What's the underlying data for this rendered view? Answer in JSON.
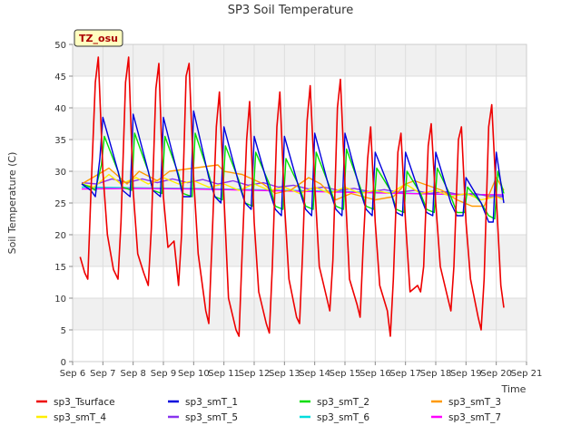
{
  "chart_data": {
    "type": "line",
    "title": "SP3 Soil Temperature",
    "xlabel": "Time",
    "ylabel": "Soil Temperature (C)",
    "badge": "TZ_osu",
    "xlim": [
      6,
      21
    ],
    "ylim": [
      0,
      50
    ],
    "x_ticks": [
      6,
      7,
      8,
      9,
      10,
      11,
      12,
      13,
      14,
      15,
      16,
      17,
      18,
      19,
      20,
      21
    ],
    "x_tick_labels": [
      "Sep 6",
      "Sep 7",
      "Sep 8",
      "Sep 9",
      "Sep 10",
      "Sep 11",
      "Sep 12",
      "Sep 13",
      "Sep 14",
      "Sep 15",
      "Sep 16",
      "Sep 17",
      "Sep 18",
      "Sep 19",
      "Sep 20",
      "Sep 21"
    ],
    "y_ticks": [
      0,
      5,
      10,
      15,
      20,
      25,
      30,
      35,
      40,
      45,
      50
    ],
    "y_tick_labels": [
      "0",
      "5",
      "10",
      "15",
      "20",
      "25",
      "30",
      "35",
      "40",
      "45",
      "50"
    ],
    "series": [
      {
        "name": "sp3_Tsurface",
        "color": "#ee0000",
        "x": [
          6.25,
          6.4,
          6.5,
          6.6,
          6.75,
          6.85,
          7.0,
          7.15,
          7.35,
          7.5,
          7.6,
          7.75,
          7.85,
          8.0,
          8.15,
          8.35,
          8.5,
          8.6,
          8.75,
          8.85,
          9.0,
          9.15,
          9.35,
          9.5,
          9.6,
          9.75,
          9.85,
          10.0,
          10.15,
          10.4,
          10.5,
          10.6,
          10.75,
          10.85,
          11.0,
          11.15,
          11.4,
          11.5,
          11.6,
          11.75,
          11.85,
          12.0,
          12.15,
          12.4,
          12.5,
          12.6,
          12.75,
          12.85,
          13.0,
          13.15,
          13.4,
          13.5,
          13.6,
          13.75,
          13.85,
          14.0,
          14.15,
          14.4,
          14.5,
          14.6,
          14.75,
          14.85,
          15.0,
          15.15,
          15.4,
          15.5,
          15.6,
          15.75,
          15.85,
          16.0,
          16.15,
          16.4,
          16.5,
          16.6,
          16.75,
          16.85,
          17.0,
          17.15,
          17.4,
          17.5,
          17.6,
          17.75,
          17.85,
          18.0,
          18.15,
          18.4,
          18.5,
          18.6,
          18.75,
          18.85,
          19.0,
          19.15,
          19.4,
          19.5,
          19.6,
          19.75,
          19.85,
          20.0,
          20.15,
          20.25
        ],
        "y": [
          16.5,
          14,
          13,
          26,
          44,
          48,
          30,
          20,
          14.5,
          13,
          22,
          44,
          48,
          27,
          17,
          14,
          12,
          21,
          43,
          47,
          26,
          18,
          19,
          12,
          20,
          45,
          47,
          29,
          17,
          8,
          6,
          18,
          37,
          42.5,
          26,
          10,
          5,
          4,
          17,
          35,
          41,
          22,
          11,
          6,
          4.5,
          15,
          37,
          42.5,
          25,
          13,
          7,
          6,
          17,
          38,
          43.5,
          28,
          15,
          10,
          8,
          16,
          40,
          44.5,
          28,
          13,
          9,
          7,
          18,
          32,
          37,
          22,
          12,
          8,
          4,
          13,
          33,
          36,
          22,
          11,
          12,
          11,
          15,
          34,
          37.5,
          25,
          15,
          10,
          8,
          15,
          35,
          37,
          22,
          13,
          7,
          5,
          13,
          37,
          40.5,
          26,
          12,
          8.5
        ]
      },
      {
        "name": "sp3_smT_1",
        "color": "#0000dd",
        "x": [
          6.3,
          6.6,
          6.75,
          6.9,
          7.0,
          7.5,
          7.65,
          7.9,
          8.0,
          8.5,
          8.65,
          8.9,
          9.0,
          9.5,
          9.65,
          9.9,
          10.0,
          10.5,
          10.7,
          10.9,
          11.0,
          11.5,
          11.7,
          11.9,
          12.0,
          12.5,
          12.7,
          12.9,
          13.0,
          13.5,
          13.7,
          13.9,
          14.0,
          14.5,
          14.7,
          14.9,
          15.0,
          15.5,
          15.7,
          15.9,
          16.0,
          16.5,
          16.7,
          16.9,
          17.0,
          17.5,
          17.7,
          17.9,
          18.0,
          18.5,
          18.7,
          18.9,
          19.0,
          19.5,
          19.75,
          19.9,
          20.0,
          20.25
        ],
        "y": [
          28,
          27,
          26,
          32,
          38.5,
          30,
          27,
          26,
          39,
          30,
          27,
          26,
          38.5,
          29,
          26,
          26,
          39.5,
          29,
          26,
          25,
          37,
          28,
          25,
          24,
          35.5,
          27,
          24,
          23,
          35.5,
          27,
          24,
          23,
          36,
          27,
          24,
          23,
          36,
          27,
          24,
          23,
          33,
          27,
          23.5,
          23,
          33,
          26,
          23.5,
          23,
          33,
          25,
          23,
          23,
          29,
          25,
          22,
          22,
          33,
          25
        ]
      },
      {
        "name": "sp3_smT_2",
        "color": "#00dd00",
        "x": [
          6.3,
          6.6,
          6.75,
          6.95,
          7.05,
          7.5,
          7.65,
          7.95,
          8.05,
          8.5,
          8.65,
          8.95,
          9.05,
          9.5,
          9.65,
          9.95,
          10.05,
          10.5,
          10.7,
          10.95,
          11.05,
          11.5,
          11.7,
          11.95,
          12.05,
          12.5,
          12.7,
          12.95,
          13.05,
          13.5,
          13.7,
          13.95,
          14.05,
          14.5,
          14.7,
          14.95,
          15.05,
          15.5,
          15.7,
          15.95,
          16.05,
          16.5,
          16.7,
          16.95,
          17.05,
          17.5,
          17.7,
          17.95,
          18.05,
          18.5,
          18.7,
          18.95,
          19.05,
          19.5,
          19.75,
          19.95,
          20.05,
          20.25
        ],
        "y": [
          28,
          27.5,
          27,
          31,
          35.5,
          30,
          27.5,
          27,
          36,
          30,
          27,
          26.5,
          35.5,
          29.5,
          26.5,
          26,
          36,
          29.5,
          26,
          25.5,
          34,
          28.5,
          25,
          24.5,
          33,
          28,
          24.5,
          24,
          32,
          27.5,
          24.5,
          24,
          33,
          27.5,
          24.5,
          24,
          33.5,
          27.5,
          24.5,
          24,
          30.5,
          27,
          24,
          23.5,
          30,
          26.5,
          24,
          23.5,
          30.5,
          26,
          23.5,
          23.5,
          27.5,
          25,
          23,
          22.5,
          30,
          26.5
        ]
      },
      {
        "name": "sp3_smT_3",
        "color": "#ff9900",
        "x": [
          6.3,
          7.2,
          7.8,
          8.2,
          8.8,
          9.2,
          10.0,
          10.8,
          11.0,
          11.6,
          12.3,
          12.7,
          13.2,
          13.8,
          14.2,
          14.7,
          15.2,
          16.0,
          16.6,
          17.0,
          17.3,
          17.9,
          18.2,
          18.7,
          19.2,
          19.6,
          20.0,
          20.25
        ],
        "y": [
          28,
          30.5,
          28,
          30,
          28.5,
          30,
          30.5,
          31,
          30,
          29.5,
          28,
          26.5,
          27,
          29,
          28,
          25.5,
          26.5,
          25.5,
          26,
          28,
          28.5,
          27.5,
          27,
          25.5,
          24.5,
          24.5,
          29,
          27
        ]
      },
      {
        "name": "sp3_smT_4",
        "color": "#ffee00",
        "x": [
          6.3,
          6.7,
          7.2,
          7.6,
          8.1,
          8.5,
          9.0,
          9.5,
          10.0,
          10.5,
          11.0,
          11.5,
          12.0,
          12.5,
          13.0,
          13.5,
          14.0,
          14.5,
          15.0,
          15.5,
          16.0,
          16.5,
          17.0,
          17.5,
          18.0,
          18.5,
          19.0,
          19.5,
          20.0,
          20.25
        ],
        "y": [
          28,
          27.5,
          29.5,
          28,
          29,
          28,
          29,
          28,
          28.5,
          27.5,
          28,
          27,
          28,
          27,
          27.5,
          26.5,
          27.5,
          26.5,
          27.5,
          26.5,
          27,
          26.5,
          28,
          26.5,
          27,
          26,
          26.5,
          25.5,
          26,
          25.5
        ]
      },
      {
        "name": "sp3_smT_5",
        "color": "#8833ee",
        "x": [
          6.3,
          6.8,
          7.3,
          7.8,
          8.3,
          8.8,
          9.3,
          9.8,
          10.3,
          10.8,
          11.3,
          11.8,
          12.3,
          12.8,
          13.3,
          13.8,
          14.3,
          14.8,
          15.3,
          15.8,
          16.3,
          16.8,
          17.3,
          17.8,
          18.3,
          18.8,
          19.3,
          19.8,
          20.25
        ],
        "y": [
          28.2,
          28,
          28.8,
          28.2,
          28.8,
          28.2,
          28.8,
          28.2,
          28.7,
          28,
          28.5,
          27.8,
          28.2,
          27.5,
          27.8,
          27.2,
          27.5,
          27,
          27.3,
          26.8,
          27.1,
          26.7,
          27,
          26.5,
          26.8,
          26.3,
          26.5,
          26,
          26
        ]
      },
      {
        "name": "sp3_smT_6",
        "color": "#00dddd",
        "x": [
          6.3,
          8.0,
          10.0,
          12.0,
          14.0,
          16.0,
          18.0,
          20.25
        ],
        "y": [
          27.5,
          27.4,
          27.3,
          27.1,
          26.9,
          26.7,
          26.4,
          26.2
        ]
      },
      {
        "name": "sp3_smT_7",
        "color": "#ff00ff",
        "x": [
          6.3,
          8.0,
          10.0,
          12.0,
          14.0,
          16.0,
          18.0,
          20.25
        ],
        "y": [
          27.2,
          27.3,
          27.2,
          27.0,
          26.8,
          26.6,
          26.4,
          26.3
        ]
      }
    ]
  }
}
